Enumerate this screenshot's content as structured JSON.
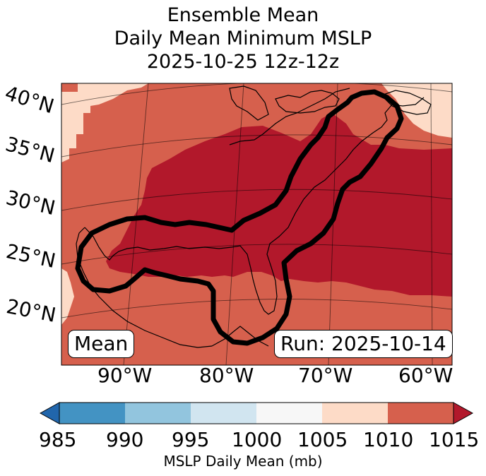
{
  "title": {
    "line1": "Ensemble Mean",
    "line2": "Daily Mean Minimum MSLP",
    "line3": "2025-10-25 12z-12z"
  },
  "map": {
    "lat_labels": [
      "40°N",
      "35°N",
      "30°N",
      "25°N",
      "20°N"
    ],
    "lon_labels": [
      "90°W",
      "80°W",
      "70°W",
      "60°W"
    ],
    "mean_box": "Mean",
    "run_box": "Run: 2025-10-14",
    "colors": {
      "land_outline": "#000000",
      "contour": "#000000"
    }
  },
  "colorbar": {
    "label": "MSLP Daily Mean (mb)",
    "ticks": [
      "985",
      "990",
      "995",
      "1000",
      "1005",
      "1010",
      "1015"
    ],
    "colors": {
      "below": "#2166ac",
      "b985_990": "#4393c3",
      "b990_995": "#92c5de",
      "b995_1000": "#d1e5f0",
      "b1000_1005": "#f7f7f7",
      "b1005_1010": "#fddbc7",
      "b1010_1015": "#d6604d",
      "above": "#b2182b"
    }
  }
}
